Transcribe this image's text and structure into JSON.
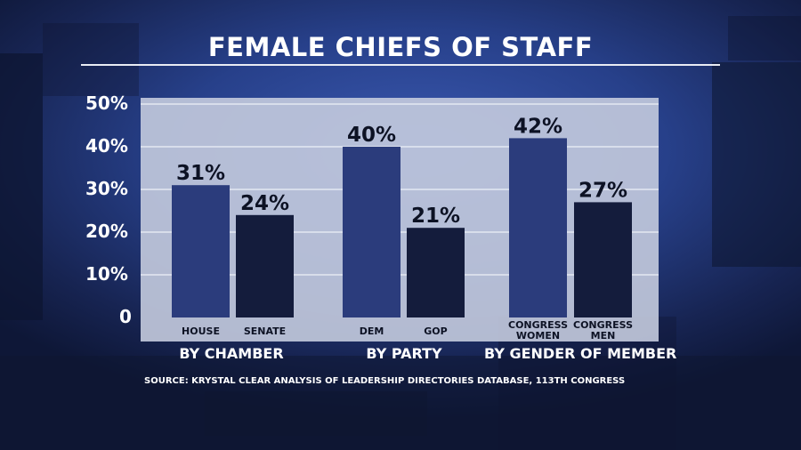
{
  "theme": {
    "background": "#243779",
    "panel": "#c4cbde",
    "gridline": "#e4e8f2",
    "bar_light": "#2b3c7c",
    "bar_dark": "#141c3c",
    "text_white": "#ffffff",
    "text_dark": "#0d1224"
  },
  "chart_data": {
    "type": "bar",
    "title": "FEMALE CHIEFS OF STAFF",
    "ylim": [
      0,
      50
    ],
    "yticks": [
      {
        "value": 50,
        "label": "50%"
      },
      {
        "value": 40,
        "label": "40%"
      },
      {
        "value": 30,
        "label": "30%"
      },
      {
        "value": 20,
        "label": "20%"
      },
      {
        "value": 10,
        "label": "10%"
      },
      {
        "value": 0,
        "label": "0"
      }
    ],
    "grid": true,
    "groups": [
      {
        "label": "BY CHAMBER",
        "bars": [
          {
            "category": [
              "HOUSE"
            ],
            "value": 31,
            "label": "31%",
            "shade": "light"
          },
          {
            "category": [
              "SENATE"
            ],
            "value": 24,
            "label": "24%",
            "shade": "dark"
          }
        ]
      },
      {
        "label": "BY PARTY",
        "bars": [
          {
            "category": [
              "DEM"
            ],
            "value": 40,
            "label": "40%",
            "shade": "light"
          },
          {
            "category": [
              "GOP"
            ],
            "value": 21,
            "label": "21%",
            "shade": "dark"
          }
        ]
      },
      {
        "label": "BY GENDER OF MEMBER",
        "bars": [
          {
            "category": [
              "CONGRESS",
              "WOMEN"
            ],
            "value": 42,
            "label": "42%",
            "shade": "light"
          },
          {
            "category": [
              "CONGRESS",
              "MEN"
            ],
            "value": 27,
            "label": "27%",
            "shade": "dark"
          }
        ]
      }
    ],
    "source": "SOURCE: KRYSTAL CLEAR ANALYSIS OF LEADERSHIP DIRECTORIES DATABASE, 113TH CONGRESS"
  }
}
